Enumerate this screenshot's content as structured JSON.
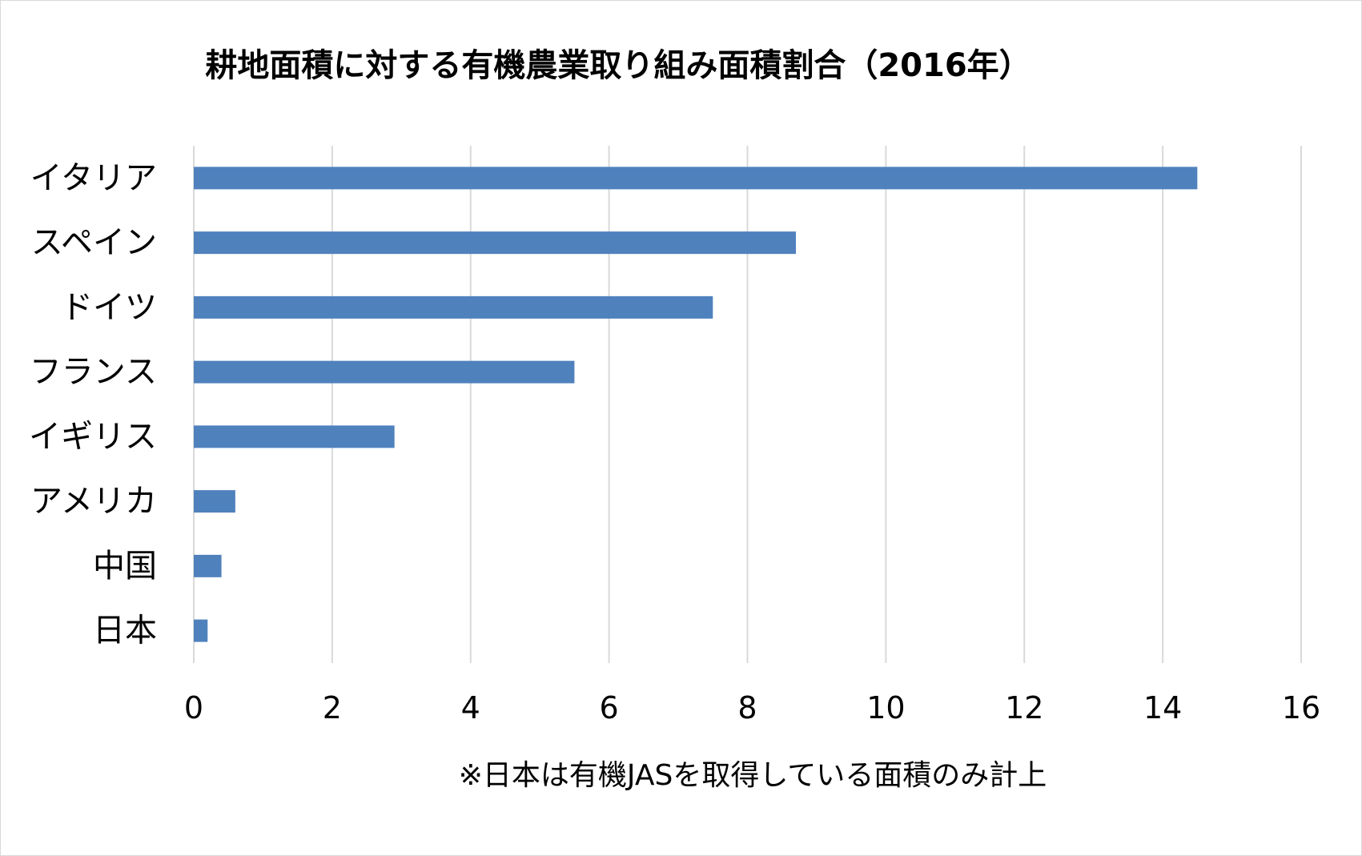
{
  "chart_data": {
    "type": "bar",
    "orientation": "horizontal",
    "title": "耕地面積に対する有機農業取り組み面積割合（2016年）",
    "categories": [
      "イタリア",
      "スペイン",
      "ドイツ",
      "フランス",
      "イギリス",
      "アメリカ",
      "中国",
      "日本"
    ],
    "values": [
      14.5,
      8.7,
      7.5,
      5.5,
      2.9,
      0.6,
      0.4,
      0.2
    ],
    "xlim": [
      0,
      16
    ],
    "x_ticks": [
      "0",
      "2",
      "4",
      "6",
      "8",
      "10",
      "12",
      "14",
      "16"
    ],
    "grid": "vertical",
    "legend": "none",
    "bar_color": "#4f81bd",
    "annotation": "※日本は有機JASを取得している面積のみ計上"
  }
}
